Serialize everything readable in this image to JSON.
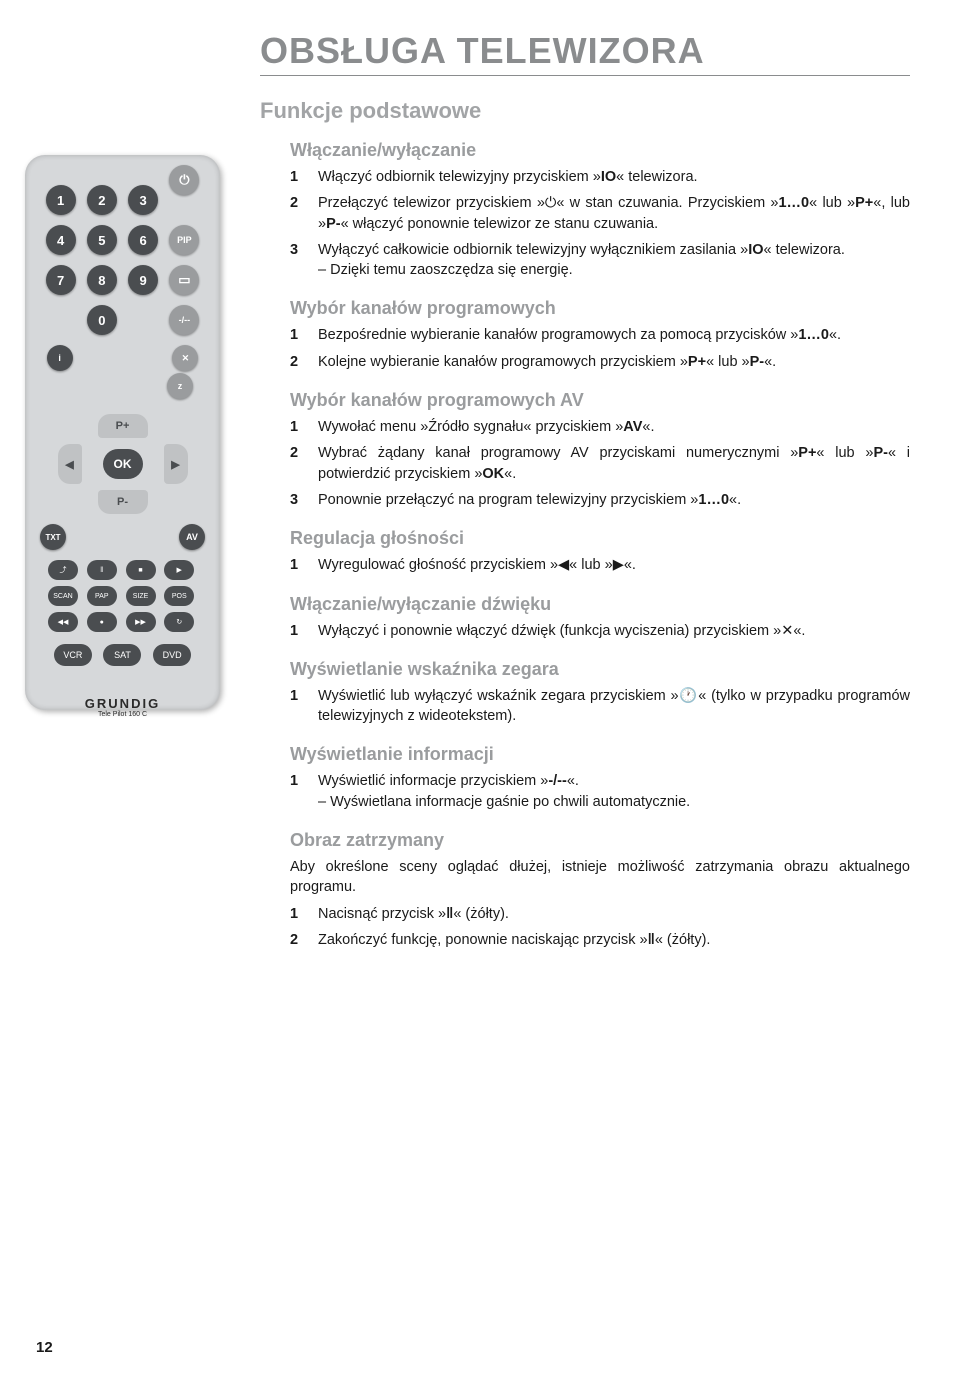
{
  "title": "OBSŁUGA TELEWIZORA",
  "subtitle": "Funkcje podstawowe",
  "page_number": "12",
  "remote": {
    "brand": "GRUNDIG",
    "model": "Tele Pilot 160 C",
    "keypad": [
      "1",
      "2",
      "3",
      "4",
      "5",
      "6",
      "7",
      "8",
      "9",
      "0"
    ],
    "top_right": [
      "⏻",
      "PIP",
      "▭",
      "-/--",
      "✕"
    ],
    "info": "i",
    "z": "z",
    "nav": {
      "up": "P+",
      "down": "P-",
      "left": "◀",
      "right": "▶",
      "ok": "OK"
    },
    "mid_left": "TXT",
    "mid_right": "AV",
    "small": [
      "⤴",
      "‖",
      "■",
      "▶",
      "SCAN",
      "PAP",
      "SIZE",
      "POS",
      "◀◀",
      "●",
      "▶▶",
      "↻"
    ],
    "bottom": [
      "VCR",
      "SAT",
      "DVD"
    ]
  },
  "sections": [
    {
      "heading": "Włączanie/wyłączanie",
      "items": [
        {
          "n": "1",
          "text": "Włączyć odbiornik telewizyjny przyciskiem »<b>IO</b>« telewizora."
        },
        {
          "n": "2",
          "text": "Przełączyć telewizor przyciskiem »⏻« w stan czuwania. Przyciskiem »<b>1…0</b>« lub »<b>P+</b>«, lub »<b>P-</b>« włączyć ponownie telewizor ze stanu czuwania."
        },
        {
          "n": "3",
          "text": "Wyłączyć całkowicie odbiornik telewizyjny wyłącznikiem zasilania »<b>IO</b>« telewizora.<br>– Dzięki temu zaoszczędza się energię."
        }
      ]
    },
    {
      "heading": "Wybór kanałów programowych",
      "items": [
        {
          "n": "1",
          "text": "Bezpośrednie wybieranie kanałów programowych za pomocą przycisków »<b>1…0</b>«."
        },
        {
          "n": "2",
          "text": "Kolejne wybieranie kanałów programowych przyciskiem »<b>P+</b>« lub »<b>P-</b>«."
        }
      ]
    },
    {
      "heading": "Wybór kanałów programowych AV",
      "items": [
        {
          "n": "1",
          "text": "Wywołać menu »Źródło sygnału« przyciskiem »<b>AV</b>«."
        },
        {
          "n": "2",
          "text": "Wybrać żądany kanał programowy AV przyciskami numerycznymi »<b>P+</b>« lub »<b>P-</b>« i potwierdzić przyciskiem »<b>OK</b>«."
        },
        {
          "n": "3",
          "text": "Ponownie przełączyć na program telewizyjny przyciskiem »<b>1…0</b>«."
        }
      ]
    },
    {
      "heading": "Regulacja głośności",
      "items": [
        {
          "n": "1",
          "text": "Wyregulować głośność przyciskiem »◀« lub »▶«."
        }
      ]
    },
    {
      "heading": "Włączanie/wyłączanie dźwięku",
      "items": [
        {
          "n": "1",
          "text": "Wyłączyć i ponownie włączyć dźwięk (funkcja wyciszenia) przyciskiem »✕«."
        }
      ]
    },
    {
      "heading": "Wyświetlanie wskaźnika zegara",
      "items": [
        {
          "n": "1",
          "text": "Wyświetlić lub wyłączyć wskaźnik zegara przyciskiem »🕐« (tylko w przypadku programów telewizyjnych z wideotekstem)."
        }
      ]
    },
    {
      "heading": "Wyświetlanie informacji",
      "items": [
        {
          "n": "1",
          "text": "Wyświetlić informacje przyciskiem »<b>-/--</b>«.<br>– Wyświetlana informacje gaśnie po chwili automatycznie."
        }
      ]
    },
    {
      "heading": "Obraz zatrzymany",
      "intro": "Aby określone sceny oglądać dłużej, istnieje możliwość zatrzymania obrazu aktualnego programu.",
      "items": [
        {
          "n": "1",
          "text": "Nacisnąć przycisk »<b>‖</b>« (żółty)."
        },
        {
          "n": "2",
          "text": "Zakończyć funkcję, ponownie naciskając przycisk »<b>‖</b>« (żółty)."
        }
      ]
    }
  ]
}
